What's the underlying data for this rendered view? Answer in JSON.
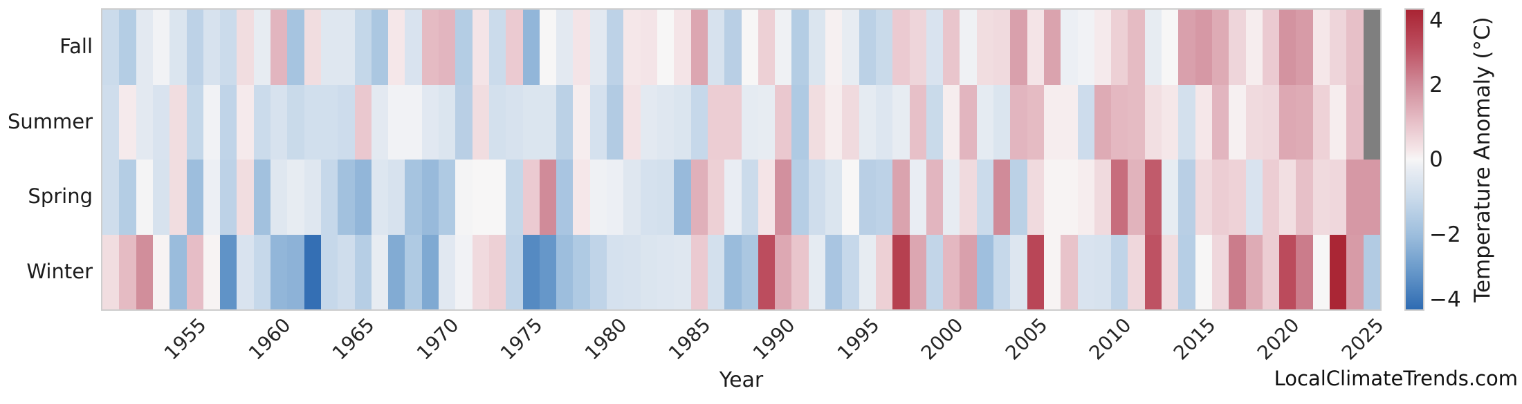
{
  "branding": {
    "watermark": "LocalClimateTrends.com"
  },
  "chart_data": {
    "type": "heatmap",
    "title": "",
    "xlabel": "Year",
    "ylabel": "",
    "rows": [
      "Fall",
      "Summer",
      "Spring",
      "Winter"
    ],
    "x_start_year": 1950,
    "x_end_year": 2025,
    "x_tick_years": [
      1955,
      1960,
      1965,
      1970,
      1975,
      1980,
      1985,
      1990,
      1995,
      2000,
      2005,
      2010,
      2015,
      2020,
      2025
    ],
    "colorbar": {
      "label": "Temperature Anomaly (°C)",
      "tick_values": [
        4,
        2,
        0,
        -2,
        -4
      ],
      "tick_labels": [
        "4",
        "2",
        "0",
        "−2",
        "−4"
      ],
      "vmin": -4,
      "vmax": 4
    },
    "missing_color": "#7f7f7f",
    "missing_cells": [
      [
        "Fall",
        2025
      ],
      [
        "Summer",
        2025
      ]
    ],
    "colormap_stops": [
      {
        "v": -4.0,
        "c": "#2e6bb2"
      },
      {
        "v": -3.0,
        "c": "#6697c9"
      },
      {
        "v": -2.0,
        "c": "#9dbedd"
      },
      {
        "v": -1.0,
        "c": "#cbdbeb"
      },
      {
        "v": -0.25,
        "c": "#e9edf3"
      },
      {
        "v": 0.0,
        "c": "#f7f6f6"
      },
      {
        "v": 0.25,
        "c": "#f5e7e9"
      },
      {
        "v": 1.0,
        "c": "#e7c0c8"
      },
      {
        "v": 2.0,
        "c": "#d08b99"
      },
      {
        "v": 3.0,
        "c": "#bd4f60"
      },
      {
        "v": 4.0,
        "c": "#a92433"
      }
    ],
    "series": [
      {
        "name": "Fall",
        "values": [
          -1.0,
          -1.5,
          -0.4,
          -0.1,
          -0.6,
          -1.3,
          -0.7,
          -1.0,
          0.45,
          -0.3,
          1.2,
          -1.8,
          0.45,
          -0.5,
          -0.5,
          -1.15,
          -1.7,
          0.25,
          -0.65,
          1.1,
          1.2,
          -1.5,
          0.3,
          -1.0,
          0.8,
          -2.2,
          0.0,
          -0.4,
          0.3,
          -0.4,
          -1.3,
          0.25,
          0.3,
          0.0,
          0.3,
          1.5,
          -0.7,
          -1.4,
          0.0,
          0.7,
          -0.15,
          -1.5,
          -0.6,
          0.1,
          -0.3,
          -1.35,
          -1.05,
          0.8,
          0.6,
          -0.65,
          0.9,
          -0.15,
          0.45,
          0.5,
          1.6,
          0.3,
          1.55,
          -0.2,
          -0.1,
          0.2,
          0.7,
          1.1,
          -0.3,
          0.0,
          1.6,
          1.75,
          1.4,
          0.6,
          0.15,
          0.8,
          1.85,
          1.7,
          0.25,
          0.6,
          1.0,
          null
        ]
      },
      {
        "name": "Summer",
        "values": [
          -0.9,
          0.2,
          -0.4,
          -0.65,
          0.45,
          -1.15,
          -0.1,
          -1.25,
          0.2,
          -1.0,
          -0.7,
          -1.05,
          -0.85,
          -0.85,
          -0.95,
          0.85,
          -0.4,
          -0.1,
          -0.1,
          -0.45,
          -0.6,
          -1.4,
          0.45,
          -0.8,
          -0.7,
          -0.6,
          -0.6,
          -1.35,
          0.15,
          -0.75,
          -1.55,
          0.35,
          -0.4,
          -0.5,
          -0.6,
          -1.1,
          0.75,
          0.75,
          -0.35,
          -0.3,
          0.85,
          -1.6,
          0.45,
          0.15,
          0.5,
          -0.35,
          -0.55,
          -0.3,
          1.0,
          -1.05,
          0.15,
          1.2,
          -0.35,
          -0.6,
          1.2,
          1.1,
          0.15,
          0.15,
          -0.95,
          1.4,
          1.15,
          1.1,
          0.4,
          0.25,
          -0.8,
          0.25,
          1.2,
          0.1,
          0.5,
          0.55,
          1.45,
          1.4,
          0.65,
          0.15,
          1.05,
          null
        ]
      },
      {
        "name": "Spring",
        "values": [
          -0.9,
          -1.5,
          -0.05,
          -0.7,
          0.45,
          -2.0,
          -0.2,
          -1.3,
          0.45,
          -1.9,
          -0.5,
          -0.3,
          -0.5,
          -1.1,
          -1.9,
          -2.2,
          -0.55,
          -0.7,
          -1.8,
          -2.1,
          -1.6,
          -0.05,
          0.0,
          0.0,
          -1.15,
          0.8,
          2.0,
          -1.75,
          0.25,
          -0.15,
          -0.2,
          -0.5,
          -0.75,
          -0.8,
          -2.1,
          1.3,
          0.7,
          -0.25,
          -1.0,
          0.3,
          1.9,
          -1.45,
          -0.9,
          -0.6,
          0.0,
          -1.4,
          -1.3,
          1.55,
          -0.25,
          1.2,
          -0.3,
          0.5,
          -1.0,
          2.0,
          -1.35,
          0.5,
          0.05,
          0.05,
          0.15,
          0.5,
          2.5,
          1.25,
          2.8,
          -0.3,
          -1.4,
          0.5,
          0.75,
          0.65,
          -0.65,
          0.75,
          0.4,
          1.0,
          0.5,
          0.55,
          1.75,
          1.75
        ]
      },
      {
        "name": "Winter",
        "values": [
          0.45,
          1.1,
          1.95,
          0.05,
          -2.05,
          1.05,
          0.05,
          -3.1,
          -0.65,
          -1.1,
          -2.2,
          -2.3,
          -3.9,
          -1.1,
          -0.9,
          -1.45,
          -0.3,
          -2.5,
          -1.6,
          -2.55,
          -0.45,
          -0.1,
          0.5,
          0.7,
          -1.25,
          -3.3,
          -3.0,
          -2.0,
          -1.6,
          -1.25,
          -0.75,
          -0.7,
          -0.6,
          -0.55,
          -0.5,
          0.8,
          -0.8,
          -2.05,
          -1.7,
          3.05,
          1.45,
          0.9,
          -0.35,
          -1.75,
          -1.1,
          -0.3,
          0.7,
          3.35,
          1.5,
          -1.2,
          1.15,
          1.6,
          -1.95,
          -1.1,
          -0.55,
          3.2,
          0.05,
          0.95,
          -0.65,
          -0.7,
          -1.25,
          0.55,
          2.95,
          0.45,
          -1.45,
          0.0,
          0.55,
          2.25,
          1.4,
          0.75,
          3.1,
          2.25,
          0.0,
          3.95,
          1.7,
          -1.55
        ]
      }
    ]
  }
}
